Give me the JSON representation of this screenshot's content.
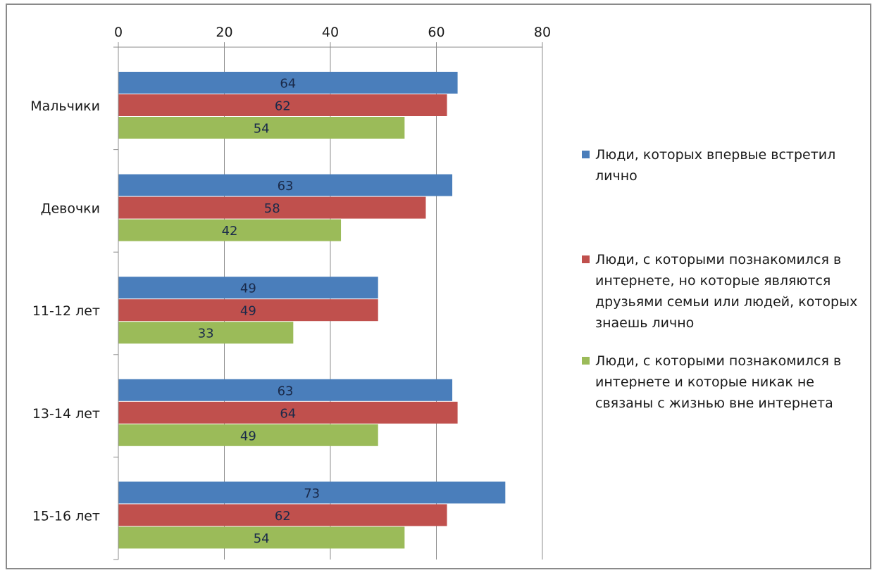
{
  "chart_data": {
    "type": "bar",
    "orientation": "horizontal",
    "categories": [
      "Мальчики",
      "Девочки",
      "11-12 лет",
      "13-14 лет",
      "15-16 лет"
    ],
    "series": [
      {
        "name": "Люди, которых впервые встретил лично",
        "color": "#4a7ebb",
        "values": [
          64,
          63,
          49,
          63,
          73
        ]
      },
      {
        "name": "Люди, с которыми познакомился в интернете, но которые являются друзьями семьи или людей, которых знаешь лично",
        "color": "#c0504d",
        "values": [
          62,
          58,
          49,
          64,
          62
        ]
      },
      {
        "name": "Люди, с которыми познакомился в интернете и которые никак не связаны с жизнью вне интернета",
        "color": "#9bbb59",
        "values": [
          54,
          42,
          33,
          49,
          54
        ]
      }
    ],
    "x_ticks": [
      "0",
      "20",
      "40",
      "60",
      "80"
    ],
    "xlim": [
      0,
      80
    ],
    "x_axis_position": "top",
    "grid": true,
    "data_labels": true,
    "legend_position": "right"
  }
}
